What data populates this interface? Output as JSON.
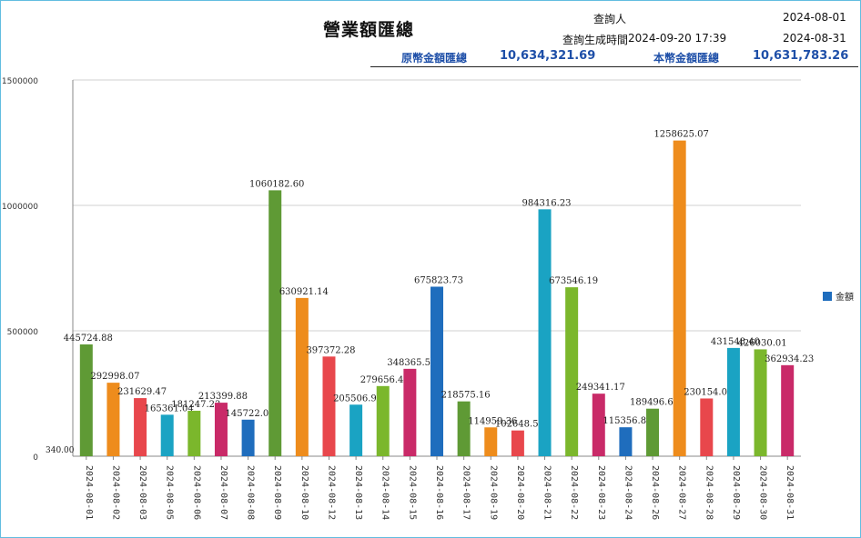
{
  "report": {
    "title": "營業額匯總",
    "queried_by_label": "查詢人",
    "generated_label": "查詢生成時間",
    "generated_at": "2024-09-20 17:39",
    "date_from": "2024-08-01",
    "date_to": "2024-08-31",
    "orig_total_label": "原幣金額匯總",
    "orig_total_value": "10,634,321.69",
    "local_total_label": "本幣金額匯總",
    "local_total_value": "10,631,783.26"
  },
  "chart_data": {
    "type": "bar",
    "ylim": [
      0,
      1500000
    ],
    "yticks": [
      "0",
      "500000",
      "1000000",
      "1500000"
    ],
    "grid": true,
    "legend_position": "right",
    "series": [
      {
        "name": "金額",
        "legend_color": "#1f6dbd"
      }
    ],
    "categories": [
      "2024-08-01",
      "2024-08-02",
      "2024-08-03",
      "2024-08-05",
      "2024-08-06",
      "2024-08-07",
      "2024-08-08",
      "2024-08-09",
      "2024-08-10",
      "2024-08-12",
      "2024-08-13",
      "2024-08-14",
      "2024-08-15",
      "2024-08-16",
      "2024-08-17",
      "2024-08-19",
      "2024-08-20",
      "2024-08-21",
      "2024-08-22",
      "2024-08-23",
      "2024-08-24",
      "2024-08-26",
      "2024-08-27",
      "2024-08-28",
      "2024-08-29",
      "2024-08-30",
      "2024-08-31"
    ],
    "values": [
      445724.88,
      292998.07,
      231629.47,
      165361.04,
      181247.23,
      213399.88,
      145722.05,
      1060182.6,
      630921.14,
      397372.28,
      205506.95,
      279656.44,
      348365.53,
      675823.73,
      218575.16,
      114959.36,
      102648.59,
      984316.23,
      673546.19,
      249341.17,
      115356.84,
      189496.69,
      1258625.07,
      230154.03,
      431548.4,
      426030.01,
      362934.23
    ],
    "value_labels": [
      "445724.88",
      "292998.07",
      "231629.47",
      "165361.04",
      "181247.23",
      "213399.88",
      "145722.05",
      "1060182.60",
      "630921.14",
      "397372.28",
      "205506.95",
      "279656.44",
      "348365.53",
      "675823.73",
      "218575.16",
      "114959.36",
      "102648.59",
      "984316.23",
      "673546.19",
      "249341.17",
      "115356.84",
      "189496.69",
      "1258625.07",
      "230154.03",
      "431548.40",
      "426030.01",
      "362934.23"
    ],
    "extra_labels": [
      "340.00"
    ],
    "colors": [
      "#5f9a35",
      "#ee8c1c",
      "#e8474c",
      "#1aa3c3",
      "#7bb72c",
      "#c92a68",
      "#1f6dbd",
      "#5f9a35",
      "#ee8c1c",
      "#e8474c",
      "#1aa3c3",
      "#7bb72c",
      "#c92a68",
      "#1f6dbd",
      "#5f9a35",
      "#ee8c1c",
      "#e8474c",
      "#1aa3c3",
      "#7bb72c",
      "#c92a68",
      "#1f6dbd",
      "#5f9a35",
      "#ee8c1c",
      "#e8474c",
      "#1aa3c3",
      "#7bb72c",
      "#c92a68"
    ]
  }
}
